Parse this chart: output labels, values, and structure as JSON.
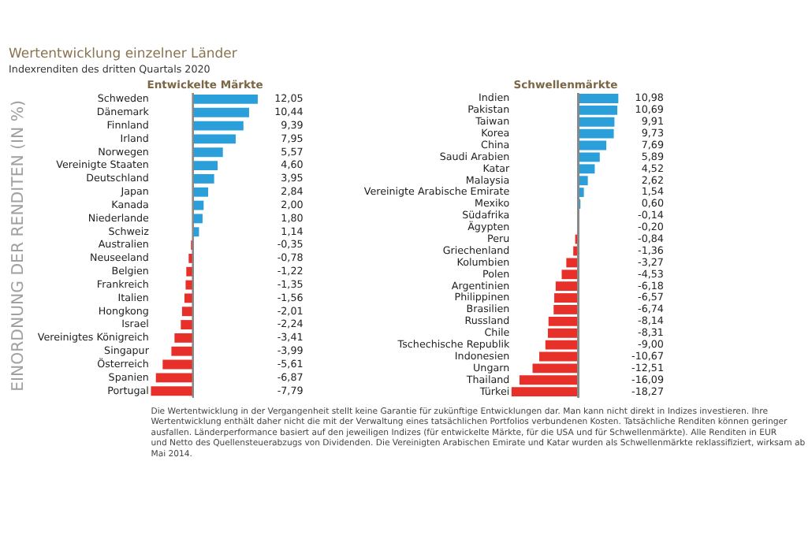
{
  "chart_data": [
    {
      "type": "bar",
      "orientation": "horizontal",
      "title": "Wertentwicklung einzelner Länder",
      "subtitle": "Indexrenditen des dritten Quartals 2020",
      "xlabel": "Entwickelte Märkte",
      "ylabel": "EINORDNUNG DER RENDITEN (IN %)",
      "tick_labels": "y",
      "value_labels": [
        "12,05",
        "10,44",
        "9,39",
        "7,95",
        "5,57",
        "4,60",
        "3,95",
        "2,84",
        "2,00",
        "1,80",
        "1,14",
        "-0,35",
        "-0,78",
        "-1,22",
        "-1,35",
        "-1,56",
        "-2,01",
        "-2,24",
        "-3,41",
        "-3,99",
        "-5,61",
        "-6,87",
        "-7,79"
      ],
      "categories": [
        "Schweden",
        "Dänemark",
        "Finnland",
        "Irland",
        "Norwegen",
        "Vereinigte Staaten",
        "Deutschland",
        "Japan",
        "Kanada",
        "Niederlande",
        "Schweiz",
        "Australien",
        "Neuseeland",
        "Belgien",
        "Frankreich",
        "Italien",
        "Hongkong",
        "Israel",
        "Vereinigtes Königreich",
        "Singapur",
        "Österreich",
        "Spanien",
        "Portugal"
      ],
      "values": [
        12.05,
        10.44,
        9.39,
        7.95,
        5.57,
        4.6,
        3.95,
        2.84,
        2.0,
        1.8,
        1.14,
        -0.35,
        -0.78,
        -1.22,
        -1.35,
        -1.56,
        -2.01,
        -2.24,
        -3.41,
        -3.99,
        -5.61,
        -6.87,
        -7.79
      ],
      "colors": [
        "#2b9fd9",
        "#2b9fd9",
        "#2b9fd9",
        "#2b9fd9",
        "#2b9fd9",
        "#2b9fd9",
        "#2b9fd9",
        "#2b9fd9",
        "#2b9fd9",
        "#2b9fd9",
        "#2b9fd9",
        "#e8302a",
        "#e8302a",
        "#e8302a",
        "#e8302a",
        "#e8302a",
        "#e8302a",
        "#e8302a",
        "#e8302a",
        "#e8302a",
        "#e8302a",
        "#e8302a",
        "#e8302a"
      ],
      "annotations": [
        "Die Wertentwicklung in der Vergangenheit stellt keine Garantie für zukünftige Entwicklungen dar. Man kann nicht direkt in Indizes investieren. Ihre Wertentwicklung enthält daher nicht die mit der Verwaltung eines tatsächlichen Portfolios verbundenen Kosten. Tatsächliche Renditen können geringer ausfallen. Länderperformance basiert auf den jeweiligen Indizes (für entwickelte Märkte, für die USA und für Schwellenmärkte). Alle Renditen in EUR und Netto des Quellensteuerabzugs von Dividenden. Die Vereinigten Arabischen Emirate und Katar wurden als Schwellenmärkte reklassifiziert, wirksam ab Mai 2014."
      ]
    },
    {
      "type": "bar",
      "orientation": "horizontal",
      "xlabel": "Schwellenmärkte",
      "tick_labels": "y",
      "value_labels": [
        "10,98",
        "10,69",
        "9,91",
        "9,73",
        "7,69",
        "5,89",
        "4,52",
        "2,62",
        "1,54",
        "0,60",
        "-0,14",
        "-0,20",
        "-0,84",
        "-1,36",
        "-3,27",
        "-4,53",
        "-6,18",
        "-6,57",
        "-6,74",
        "-8,14",
        "-8,31",
        "-9,00",
        "-10,67",
        "-12,51",
        "-16,09",
        "-18,27"
      ],
      "categories": [
        "Indien",
        "Pakistan",
        "Taiwan",
        "Korea",
        "China",
        "Saudi Arabien",
        "Katar",
        "Malaysia",
        "Vereinigte Arabische Emirate",
        "Mexiko",
        "Südafrika",
        "Ägypten",
        "Peru",
        "Griechenland",
        "Kolumbien",
        "Polen",
        "Argentinien",
        "Philippinen",
        "Brasilien",
        "Russland",
        "Chile",
        "Tschechische Republik",
        "Indonesien",
        "Ungarn",
        "Thailand",
        "Türkei"
      ],
      "values": [
        10.98,
        10.69,
        9.91,
        9.73,
        7.69,
        5.89,
        4.52,
        2.62,
        1.54,
        0.6,
        -0.14,
        -0.2,
        -0.84,
        -1.36,
        -3.27,
        -4.53,
        -6.18,
        -6.57,
        -6.74,
        -8.14,
        -8.31,
        -9.0,
        -10.67,
        -12.51,
        -16.09,
        -18.27
      ],
      "colors": [
        "#2b9fd9",
        "#2b9fd9",
        "#2b9fd9",
        "#2b9fd9",
        "#2b9fd9",
        "#2b9fd9",
        "#2b9fd9",
        "#2b9fd9",
        "#2b9fd9",
        "#2b9fd9",
        "#e8302a",
        "#e8302a",
        "#e8302a",
        "#e8302a",
        "#e8302a",
        "#e8302a",
        "#e8302a",
        "#e8302a",
        "#e8302a",
        "#e8302a",
        "#e8302a",
        "#e8302a",
        "#e8302a",
        "#e8302a",
        "#e8302a",
        "#e8302a"
      ]
    }
  ]
}
